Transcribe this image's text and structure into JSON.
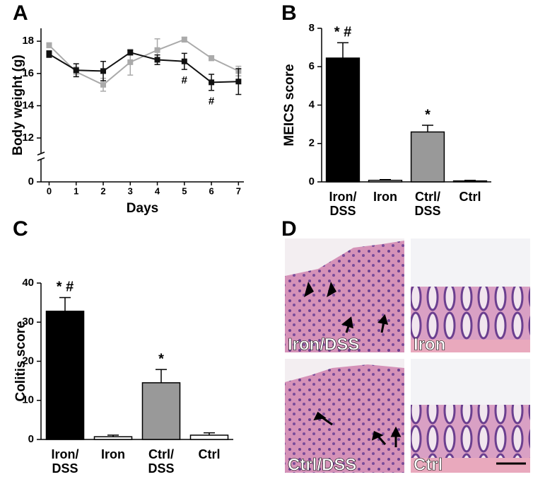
{
  "chart_data": [
    {
      "type": "line",
      "panel_label": "A",
      "xlabel": "Days",
      "ylabel": "Body weight (g)",
      "x": [
        0,
        1,
        2,
        3,
        4,
        5,
        6,
        7
      ],
      "xlim": [
        -0.3,
        7.2
      ],
      "xticks": [
        0,
        1,
        2,
        3,
        4,
        5,
        6,
        7
      ],
      "ylim": [
        0,
        18.8
      ],
      "yticks": [
        0,
        12,
        14,
        16,
        18
      ],
      "axis_break": true,
      "series": [
        {
          "color": "#aaaaaa",
          "values": [
            17.75,
            16.1,
            15.3,
            16.7,
            17.45,
            18.1,
            16.95,
            16.15
          ],
          "errors": [
            0.15,
            0.3,
            0.4,
            0.8,
            0.7,
            0.15,
            0.15,
            0.3
          ]
        },
        {
          "color": "#111111",
          "values": [
            17.2,
            16.2,
            16.15,
            17.3,
            16.85,
            16.75,
            15.45,
            15.5
          ],
          "errors": [
            0.2,
            0.4,
            0.6,
            0.15,
            0.3,
            0.5,
            0.5,
            0.8
          ]
        }
      ],
      "annotations": [
        {
          "text": "#",
          "x": 5
        },
        {
          "text": "#",
          "x": 6
        }
      ]
    },
    {
      "type": "bar",
      "panel_label": "B",
      "ylabel": "MEICS score",
      "categories": [
        "Iron/ DSS",
        "Iron",
        "Ctrl/ DSS",
        "Ctrl"
      ],
      "values": [
        6.45,
        0.08,
        2.6,
        0.05
      ],
      "errors": [
        0.8,
        0.04,
        0.35,
        0.03
      ],
      "colors": [
        "#000000",
        "#ffffff",
        "#999999",
        "#ffffff"
      ],
      "ylim": [
        0,
        8
      ],
      "yticks": [
        0,
        2,
        4,
        6,
        8
      ],
      "annotations": [
        "* #",
        null,
        "*",
        null
      ]
    },
    {
      "type": "bar",
      "panel_label": "C",
      "ylabel": "Colitis score",
      "categories": [
        "Iron/ DSS",
        "Iron",
        "Ctrl/ DSS",
        "Ctrl"
      ],
      "values": [
        32.8,
        0.7,
        14.5,
        1.1
      ],
      "errors": [
        3.5,
        0.4,
        3.4,
        0.6
      ],
      "colors": [
        "#000000",
        "#ffffff",
        "#999999",
        "#ffffff"
      ],
      "ylim": [
        0,
        40
      ],
      "yticks": [
        0,
        10,
        20,
        30,
        40
      ],
      "annotations": [
        "* #",
        null,
        "*",
        null
      ]
    }
  ],
  "panel_d": {
    "label": "D",
    "images": [
      "Iron/DSS",
      "Iron",
      "Ctrl/DSS",
      "Ctrl"
    ]
  }
}
